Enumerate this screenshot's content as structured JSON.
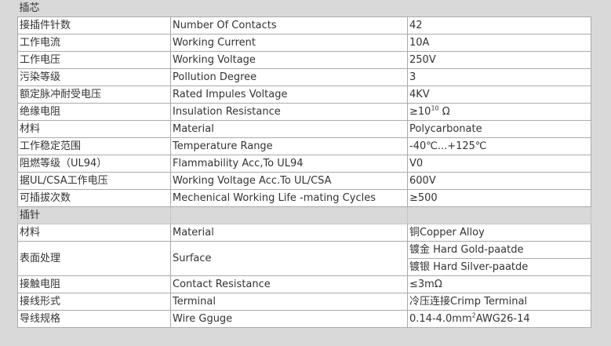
{
  "sections": [
    {
      "title": "插芯",
      "rows": [
        [
          "接插件针数",
          "Number Of Contacts",
          "42"
        ],
        [
          "工作电流",
          "Working Current",
          "10A"
        ],
        [
          "工作电压",
          "Working Voltage",
          "250V"
        ],
        [
          "污染等级",
          "Pollution Degree",
          "3"
        ],
        [
          "额定脉冲耐受电压",
          "Rated Impules Voltage",
          "4KV"
        ],
        [
          "绝缘电阻",
          "Insulation Resistance",
          "≥10",
          "10",
          " Ω"
        ],
        [
          "材料",
          "Material",
          "Polycarbonate"
        ],
        [
          "工作稳定范围",
          "Temperature Range",
          "-40℃...+125℃"
        ],
        [
          "阻燃等级（UL94）",
          "Flammability Acc,To UL94",
          "V0"
        ],
        [
          "据UL/CSA工作电压",
          "Working Voltage Acc.To UL/CSA",
          "600V"
        ],
        [
          "可插拔次数",
          "Mechenical Working Life -mating Cycles",
          "≥500"
        ]
      ]
    },
    {
      "title": "插针",
      "rows": [
        [
          "材料",
          "Material",
          "铜Copper Alloy"
        ],
        [
          "表面处理",
          "Surface",
          "镀金 Hard Gold-paatde",
          "镀银 Hard Silver-paatde"
        ],
        [
          "接触电阻",
          "Contact Resistance",
          "≤3mΩ"
        ],
        [
          "接线形式",
          "Terminal",
          "冷压连接Crimp Terminal"
        ],
        [
          "导线规格",
          "Wire Gguge",
          "0.14-4.0mm",
          "2",
          "AWG26-14"
        ]
      ]
    }
  ]
}
